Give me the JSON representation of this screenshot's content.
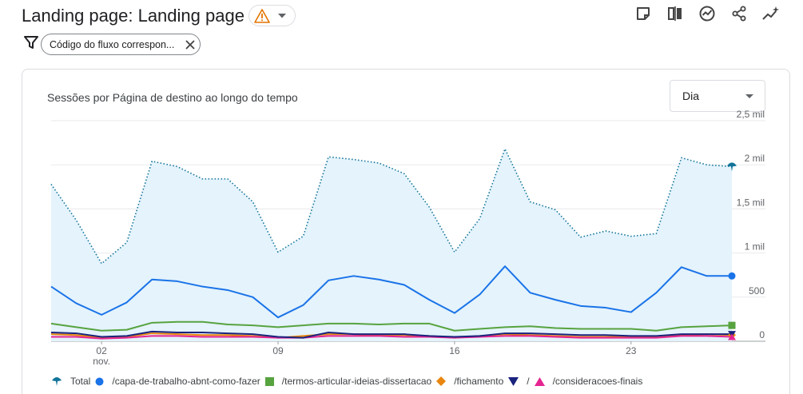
{
  "header": {
    "title": "Landing page: Landing page"
  },
  "filter": {
    "chip_text": "Código do fluxo correspon..."
  },
  "card": {
    "title": "Sessões por Página de destino ao longo do tempo",
    "period": "Dia"
  },
  "colors": {
    "total": "#12749a",
    "capa": "#1a73e8",
    "termos": "#57a33f",
    "fichamento": "#e8860f",
    "root": "#1a237e",
    "consideracoes": "#e52592",
    "area_fill": "#e4f3fc"
  },
  "chart_data": {
    "type": "line",
    "x_tick_labels": [
      {
        "index": 2,
        "day": "02",
        "month": "nov."
      },
      {
        "index": 9,
        "day": "09",
        "month": ""
      },
      {
        "index": 16,
        "day": "16",
        "month": ""
      },
      {
        "index": 23,
        "day": "23",
        "month": ""
      }
    ],
    "x_count": 28,
    "y_ticks": [
      {
        "value": 0,
        "label": "0"
      },
      {
        "value": 500,
        "label": "500"
      },
      {
        "value": 1000,
        "label": "1 mil"
      },
      {
        "value": 1500,
        "label": "1,5 mil"
      },
      {
        "value": 2000,
        "label": "2 mil"
      },
      {
        "value": 2500,
        "label": "2,5 mil"
      }
    ],
    "ylim": [
      0,
      2500
    ],
    "series": [
      {
        "name": "Total",
        "key": "total",
        "style": "dotted",
        "marker": "pin",
        "values": [
          1780,
          1370,
          880,
          1120,
          2040,
          1980,
          1840,
          1840,
          1580,
          1010,
          1190,
          2090,
          2060,
          2020,
          1900,
          1520,
          1010,
          1390,
          2180,
          1580,
          1490,
          1180,
          1250,
          1190,
          1220,
          2080,
          2000,
          1980
        ]
      },
      {
        "name": "/capa-de-trabalho-abnt-como-fazer",
        "key": "capa",
        "style": "solid",
        "marker": "circle",
        "values": [
          620,
          430,
          300,
          440,
          700,
          680,
          620,
          580,
          500,
          270,
          410,
          690,
          740,
          700,
          640,
          470,
          320,
          530,
          850,
          550,
          470,
          400,
          380,
          330,
          550,
          840,
          740,
          740
        ]
      },
      {
        "name": "/termos-articular-ideias-dissertacao",
        "key": "termos",
        "style": "solid",
        "marker": "square",
        "values": [
          200,
          160,
          120,
          130,
          210,
          220,
          220,
          190,
          180,
          160,
          180,
          200,
          200,
          190,
          200,
          200,
          120,
          140,
          160,
          170,
          150,
          140,
          140,
          140,
          120,
          160,
          170,
          180
        ]
      },
      {
        "name": "/fichamento",
        "key": "fichamento",
        "style": "solid",
        "marker": "diamond",
        "values": [
          80,
          70,
          40,
          50,
          90,
          80,
          70,
          70,
          60,
          40,
          60,
          80,
          80,
          70,
          70,
          60,
          40,
          60,
          80,
          70,
          60,
          50,
          50,
          50,
          50,
          70,
          80,
          70
        ]
      },
      {
        "name": "/",
        "key": "root",
        "style": "solid",
        "marker": "triangle-down",
        "values": [
          100,
          90,
          50,
          60,
          110,
          100,
          100,
          90,
          80,
          50,
          40,
          100,
          80,
          80,
          80,
          60,
          50,
          60,
          90,
          90,
          80,
          70,
          70,
          60,
          60,
          80,
          80,
          80
        ]
      },
      {
        "name": "/consideracoes-finais",
        "key": "consideracoes",
        "style": "solid",
        "marker": "triangle-up",
        "values": [
          50,
          50,
          30,
          40,
          60,
          60,
          50,
          50,
          50,
          40,
          40,
          60,
          60,
          60,
          50,
          50,
          40,
          50,
          60,
          60,
          50,
          40,
          40,
          40,
          40,
          60,
          60,
          50
        ]
      }
    ]
  }
}
